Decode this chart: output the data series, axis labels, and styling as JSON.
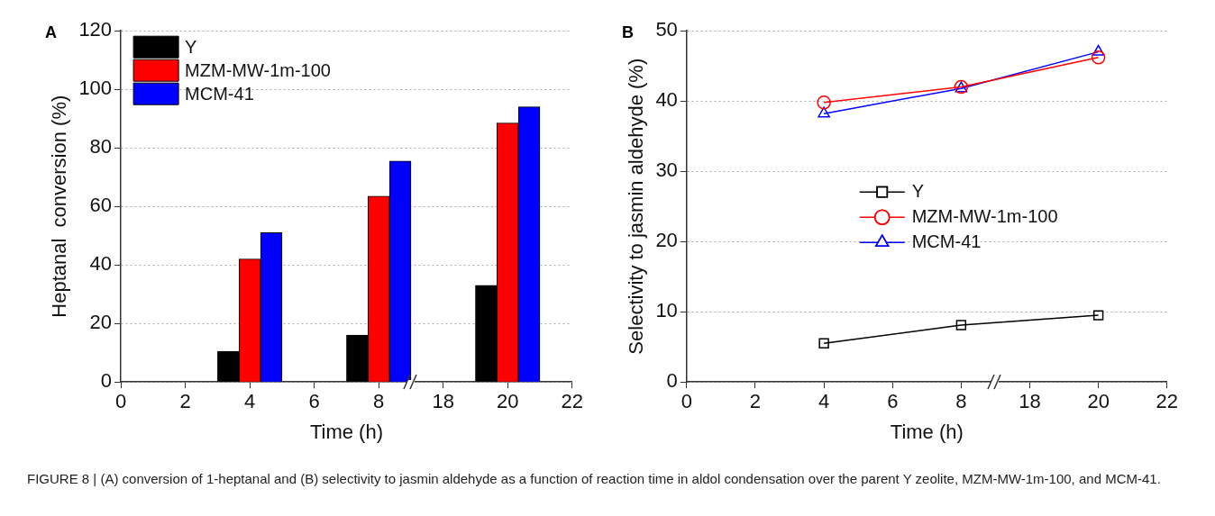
{
  "chart_data": [
    {
      "type": "bar",
      "title": "A",
      "xlabel": "Time (h)",
      "ylabel": "Heptanal  conversion (%)",
      "categories": [
        "0",
        "2",
        "4",
        "6",
        "8",
        "18",
        "20",
        "22"
      ],
      "series": [
        {
          "name": "Y",
          "color": "#000000",
          "values": [
            null,
            null,
            10.5,
            null,
            16,
            null,
            33,
            null
          ]
        },
        {
          "name": "MZM-MW-1m-100",
          "color": "#ff0000",
          "values": [
            null,
            null,
            42,
            null,
            63.5,
            null,
            88.5,
            null
          ]
        },
        {
          "name": "MCM-41",
          "color": "#0000ff",
          "values": [
            null,
            null,
            51,
            null,
            75.5,
            null,
            94,
            null
          ]
        }
      ],
      "ylim": [
        0,
        120
      ],
      "yticks": [
        0,
        20,
        40,
        60,
        80,
        100,
        120
      ],
      "grid": "y",
      "legend": "top left",
      "annotations": [
        "FIGURE 8 | (A) conversion of 1-heptanal and (B) selectivity to jasmin aldehyde as a function of reaction time in aldol condensation over the parent Y zeolite, MZM-MW-1m-100, and MCM-41."
      ]
    },
    {
      "type": "line",
      "title": "B",
      "xlabel": "Time (h)",
      "ylabel": "Selectivity to jasmin aldehyde (%)",
      "categories": [
        "0",
        "2",
        "4",
        "6",
        "8",
        "18",
        "20",
        "22"
      ],
      "series": [
        {
          "name": "Y",
          "color": "#000000",
          "marker": "square",
          "values": [
            null,
            null,
            5.5,
            null,
            8.1,
            null,
            9.5,
            null
          ]
        },
        {
          "name": "MZM-MW-1m-100",
          "color": "#ff0000",
          "marker": "circle",
          "values": [
            null,
            null,
            39.8,
            null,
            42,
            null,
            46.2,
            null
          ]
        },
        {
          "name": "MCM-41",
          "color": "#0000ff",
          "marker": "triangle",
          "values": [
            null,
            null,
            38.2,
            null,
            41.8,
            null,
            47,
            null
          ]
        }
      ],
      "ylim": [
        0,
        50
      ],
      "yticks": [
        0,
        10,
        20,
        30,
        40,
        50
      ],
      "grid": "y",
      "legend": "right",
      "line_style": "solid"
    }
  ]
}
